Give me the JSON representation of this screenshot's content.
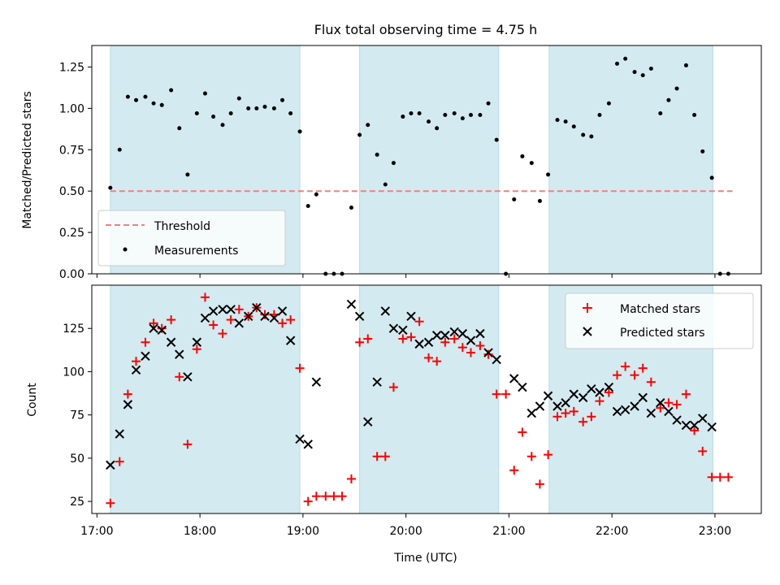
{
  "title": "Flux total observing time = 4.75 h",
  "chart_data": [
    {
      "type": "scatter",
      "ylabel": "Matched/Predicted stars",
      "xlabel": "",
      "xlim": [
        16.95,
        23.45
      ],
      "ylim": [
        0.0,
        1.38
      ],
      "yticks": [
        0.0,
        0.25,
        0.5,
        0.75,
        1.0,
        1.25
      ],
      "ytick_labels": [
        "0.00",
        "0.25",
        "0.50",
        "0.75",
        "1.00",
        "1.25"
      ],
      "shaded_intervals": [
        [
          17.13,
          18.97
        ],
        [
          19.55,
          20.9
        ],
        [
          21.39,
          22.98
        ]
      ],
      "shade_color": "#d3eaf0",
      "threshold": {
        "name": "Threshold",
        "y": 0.5,
        "x_range": [
          17.13,
          23.17
        ],
        "color": "#f08080"
      },
      "series": [
        {
          "name": "Measurements",
          "marker": "dot",
          "color": "#000000",
          "x": [
            17.13,
            17.22,
            17.3,
            17.38,
            17.47,
            17.55,
            17.63,
            17.72,
            17.8,
            17.88,
            17.97,
            18.05,
            18.13,
            18.22,
            18.3,
            18.38,
            18.47,
            18.55,
            18.63,
            18.72,
            18.8,
            18.88,
            18.97,
            19.05,
            19.13,
            19.22,
            19.3,
            19.38,
            19.47,
            19.55,
            19.63,
            19.72,
            19.8,
            19.88,
            19.97,
            20.05,
            20.13,
            20.22,
            20.3,
            20.38,
            20.47,
            20.55,
            20.63,
            20.72,
            20.8,
            20.88,
            20.97,
            21.05,
            21.13,
            21.22,
            21.3,
            21.38,
            21.47,
            21.55,
            21.63,
            21.72,
            21.8,
            21.88,
            21.97,
            22.05,
            22.13,
            22.22,
            22.3,
            22.38,
            22.47,
            22.55,
            22.63,
            22.72,
            22.8,
            22.88,
            22.97,
            23.05,
            23.13
          ],
          "y": [
            0.52,
            0.75,
            1.07,
            1.05,
            1.07,
            1.03,
            1.02,
            1.11,
            0.88,
            0.6,
            0.97,
            1.09,
            0.95,
            0.9,
            0.97,
            1.06,
            1.0,
            1.0,
            1.01,
            1.0,
            1.05,
            0.97,
            0.86,
            0.41,
            0.48,
            0.0,
            0.0,
            0.0,
            0.4,
            0.84,
            0.9,
            0.72,
            0.54,
            0.67,
            0.95,
            0.97,
            0.97,
            0.92,
            0.88,
            0.96,
            0.97,
            0.94,
            0.96,
            0.96,
            1.03,
            0.81,
            0.0,
            0.45,
            0.71,
            0.67,
            0.44,
            0.6,
            0.93,
            0.92,
            0.89,
            0.84,
            0.83,
            0.96,
            1.03,
            1.27,
            1.3,
            1.22,
            1.2,
            1.24,
            0.97,
            1.05,
            1.12,
            1.26,
            0.96,
            0.74,
            0.58,
            0.0,
            0.0
          ]
        }
      ],
      "legend": {
        "position": "lower-left",
        "entries": [
          "Threshold",
          "Measurements"
        ]
      }
    },
    {
      "type": "scatter",
      "ylabel": "Count",
      "xlabel": "Time (UTC)",
      "xlim": [
        16.95,
        23.45
      ],
      "ylim": [
        18,
        150
      ],
      "yticks": [
        25,
        50,
        75,
        100,
        125
      ],
      "ytick_labels": [
        "25",
        "50",
        "75",
        "100",
        "125"
      ],
      "xticks": [
        17,
        18,
        19,
        20,
        21,
        22,
        23
      ],
      "xtick_labels": [
        "17:00",
        "18:00",
        "19:00",
        "20:00",
        "21:00",
        "22:00",
        "23:00"
      ],
      "shaded_intervals": [
        [
          17.13,
          18.97
        ],
        [
          19.55,
          20.9
        ],
        [
          21.39,
          22.98
        ]
      ],
      "shade_color": "#d3eaf0",
      "series": [
        {
          "name": "Matched stars",
          "marker": "plus",
          "color": "#ff0000",
          "x": [
            17.13,
            17.22,
            17.3,
            17.38,
            17.47,
            17.55,
            17.63,
            17.72,
            17.8,
            17.88,
            17.97,
            18.05,
            18.13,
            18.22,
            18.3,
            18.38,
            18.47,
            18.55,
            18.63,
            18.72,
            18.8,
            18.88,
            18.97,
            19.05,
            19.13,
            19.22,
            19.3,
            19.38,
            19.47,
            19.55,
            19.63,
            19.72,
            19.8,
            19.88,
            19.97,
            20.05,
            20.13,
            20.22,
            20.3,
            20.38,
            20.47,
            20.55,
            20.63,
            20.72,
            20.8,
            20.88,
            20.97,
            21.05,
            21.13,
            21.22,
            21.3,
            21.38,
            21.47,
            21.55,
            21.63,
            21.72,
            21.8,
            21.88,
            21.97,
            22.05,
            22.13,
            22.22,
            22.3,
            22.38,
            22.47,
            22.55,
            22.63,
            22.72,
            22.8,
            22.88,
            22.97,
            23.05,
            23.13
          ],
          "y": [
            24,
            48,
            87,
            106,
            117,
            128,
            125,
            130,
            97,
            58,
            113,
            143,
            127,
            122,
            130,
            136,
            132,
            137,
            133,
            133,
            128,
            130,
            102,
            25,
            28,
            28,
            28,
            28,
            38,
            117,
            119,
            51,
            51,
            91,
            119,
            120,
            129,
            108,
            106,
            117,
            119,
            114,
            111,
            115,
            110,
            87,
            87,
            43,
            65,
            51,
            35,
            52,
            74,
            76,
            77,
            71,
            74,
            83,
            88,
            98,
            103,
            98,
            102,
            94,
            79,
            82,
            81,
            87,
            66,
            54,
            39,
            39,
            39
          ]
        },
        {
          "name": "Predicted stars",
          "marker": "x",
          "color": "#000000",
          "x": [
            17.13,
            17.22,
            17.3,
            17.38,
            17.47,
            17.55,
            17.63,
            17.72,
            17.8,
            17.88,
            17.97,
            18.05,
            18.13,
            18.22,
            18.3,
            18.38,
            18.47,
            18.55,
            18.63,
            18.72,
            18.8,
            18.88,
            18.97,
            19.05,
            19.13,
            19.47,
            19.55,
            19.63,
            19.72,
            19.8,
            19.88,
            19.97,
            20.05,
            20.13,
            20.22,
            20.3,
            20.38,
            20.47,
            20.55,
            20.63,
            20.72,
            20.8,
            20.88,
            21.05,
            21.13,
            21.22,
            21.3,
            21.38,
            21.47,
            21.55,
            21.63,
            21.72,
            21.8,
            21.88,
            21.97,
            22.05,
            22.13,
            22.22,
            22.3,
            22.38,
            22.47,
            22.55,
            22.63,
            22.72,
            22.8,
            22.88,
            22.97
          ],
          "y": [
            46,
            64,
            81,
            101,
            109,
            125,
            124,
            117,
            110,
            97,
            117,
            131,
            135,
            136,
            136,
            128,
            132,
            137,
            132,
            131,
            135,
            118,
            61,
            58,
            94,
            139,
            132,
            71,
            94,
            135,
            125,
            124,
            132,
            116,
            117,
            121,
            121,
            123,
            122,
            118,
            122,
            111,
            107,
            96,
            91,
            76,
            80,
            86,
            80,
            82,
            87,
            85,
            90,
            88,
            91,
            77,
            78,
            80,
            85,
            76,
            82,
            77,
            72,
            69,
            69,
            73,
            68
          ]
        }
      ],
      "legend": {
        "position": "top-right",
        "entries": [
          "Matched stars",
          "Predicted stars"
        ]
      }
    }
  ]
}
